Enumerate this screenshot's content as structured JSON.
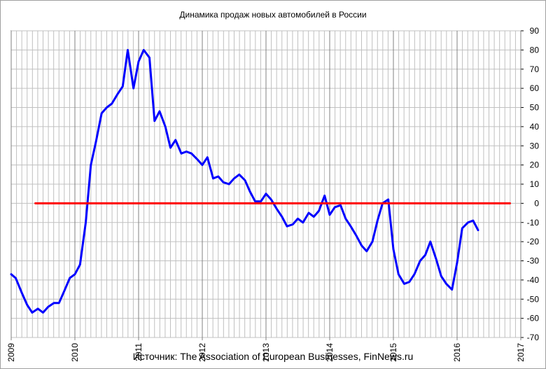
{
  "chart_data": {
    "type": "line",
    "title": "Динамика продаж новых автомобилей в России",
    "source": "Источник: The Association of European Businesses, FinNews.ru",
    "xlabel": "",
    "ylabel": "",
    "x_ticks": [
      "2009",
      "2010",
      "2011",
      "2012",
      "2013",
      "2014",
      "2015",
      "2016",
      "2017"
    ],
    "y_ticks": [
      "90",
      "80",
      "70",
      "60",
      "50",
      "40",
      "30",
      "20",
      "10",
      "0",
      "-10",
      "-20",
      "-30",
      "-40",
      "-50",
      "-60",
      "-70"
    ],
    "ylim": [
      -70,
      90
    ],
    "xlim": [
      2009.0,
      2017.0
    ],
    "grid": true,
    "y_axis_side": "right",
    "series": [
      {
        "color": "#0000ff",
        "x": [
          2009.0,
          2009.07,
          2009.17,
          2009.25,
          2009.33,
          2009.42,
          2009.5,
          2009.58,
          2009.67,
          2009.75,
          2009.83,
          2009.92,
          2010.0,
          2010.08,
          2010.17,
          2010.25,
          2010.33,
          2010.42,
          2010.5,
          2010.58,
          2010.67,
          2010.75,
          2010.83,
          2010.92,
          2011.0,
          2011.08,
          2011.17,
          2011.25,
          2011.33,
          2011.42,
          2011.5,
          2011.58,
          2011.67,
          2011.75,
          2011.83,
          2011.92,
          2012.0,
          2012.08,
          2012.17,
          2012.25,
          2012.33,
          2012.42,
          2012.5,
          2012.58,
          2012.67,
          2012.75,
          2012.83,
          2012.92,
          2013.0,
          2013.08,
          2013.17,
          2013.25,
          2013.33,
          2013.42,
          2013.5,
          2013.58,
          2013.67,
          2013.75,
          2013.83,
          2013.92,
          2014.0,
          2014.08,
          2014.17,
          2014.25,
          2014.33,
          2014.42,
          2014.5,
          2014.58,
          2014.67,
          2014.75,
          2014.83,
          2014.92,
          2015.0,
          2015.08,
          2015.17,
          2015.25,
          2015.33,
          2015.42,
          2015.5,
          2015.58,
          2015.67,
          2015.75,
          2015.83,
          2015.92,
          2016.0,
          2016.08,
          2016.17,
          2016.25,
          2016.33
        ],
        "values": [
          -37,
          -39,
          -47,
          -53,
          -57,
          -55,
          -57,
          -54,
          -52,
          -52,
          -46,
          -39,
          -37,
          -32,
          -10,
          20,
          32,
          47,
          50,
          52,
          57,
          61,
          80,
          60,
          74,
          80,
          76,
          43,
          48,
          40,
          29,
          33,
          26,
          27,
          26,
          23,
          20,
          24,
          13,
          14,
          11,
          10,
          13,
          15,
          12,
          6,
          1,
          1,
          5,
          2,
          -3,
          -7,
          -12,
          -11,
          -8,
          -10,
          -5,
          -7,
          -4,
          4,
          -6,
          -2,
          -1,
          -8,
          -12,
          -17,
          -22,
          -25,
          -20,
          -9,
          0,
          2,
          -24,
          -37,
          -42,
          -41,
          -37,
          -30,
          -27,
          -20,
          -29,
          -38,
          -42,
          -45,
          -31,
          -13,
          -10,
          -9,
          -14
        ]
      },
      {
        "color": "#ff0000",
        "x": [
          2009.38,
          2016.83
        ],
        "values": [
          0,
          0
        ]
      }
    ]
  }
}
